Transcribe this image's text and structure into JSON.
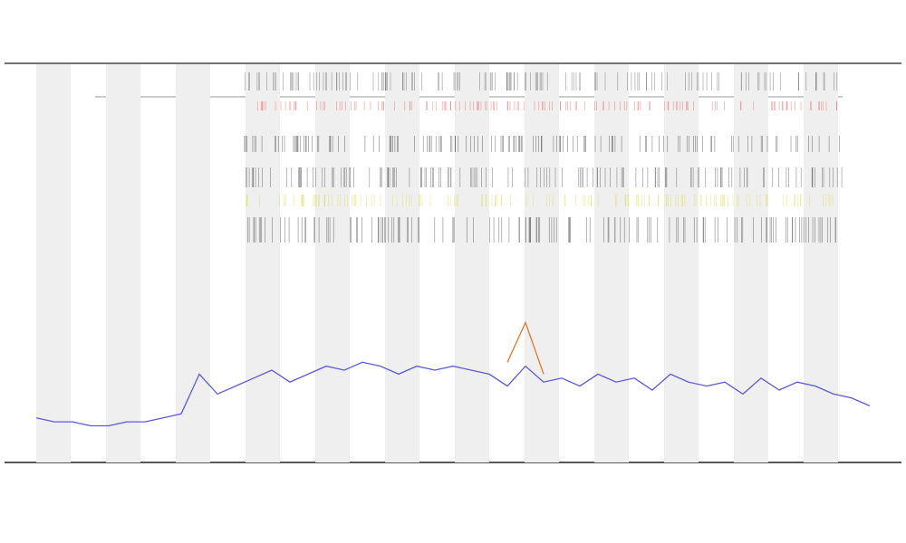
{
  "chart_data": {
    "type": "line",
    "x": [
      0,
      1,
      2,
      3,
      4,
      5,
      6,
      7,
      8,
      9,
      10,
      11,
      12,
      13,
      14,
      15,
      16,
      17,
      18,
      19,
      20,
      21,
      22,
      23,
      24,
      25,
      26,
      27,
      28,
      29,
      30,
      31,
      32,
      33,
      34,
      35,
      36,
      37,
      38,
      39,
      40,
      41,
      42,
      43,
      44,
      45,
      46
    ],
    "xlim": [
      0,
      46
    ],
    "ylim": [
      0,
      100
    ],
    "series": [
      {
        "color": "#5a5ae0",
        "values": [
          11,
          10,
          10,
          9,
          9,
          10,
          10,
          11,
          12,
          22,
          17,
          19,
          21,
          23,
          20,
          22,
          24,
          23,
          25,
          24,
          22,
          24,
          23,
          24,
          23,
          22,
          19,
          24,
          20,
          21,
          19,
          22,
          20,
          21,
          18,
          22,
          20,
          19,
          20,
          17,
          21,
          18,
          20,
          19,
          17,
          16,
          14
        ]
      },
      {
        "color": "#e07a2a",
        "values": [
          null,
          null,
          null,
          null,
          null,
          null,
          null,
          null,
          null,
          null,
          null,
          null,
          null,
          null,
          null,
          null,
          null,
          null,
          null,
          null,
          null,
          null,
          null,
          null,
          null,
          null,
          25,
          35,
          22,
          null,
          null,
          null,
          null,
          null,
          null,
          null,
          null,
          null,
          null,
          null,
          null,
          null,
          null,
          null,
          null,
          null,
          null
        ]
      }
    ]
  }
}
